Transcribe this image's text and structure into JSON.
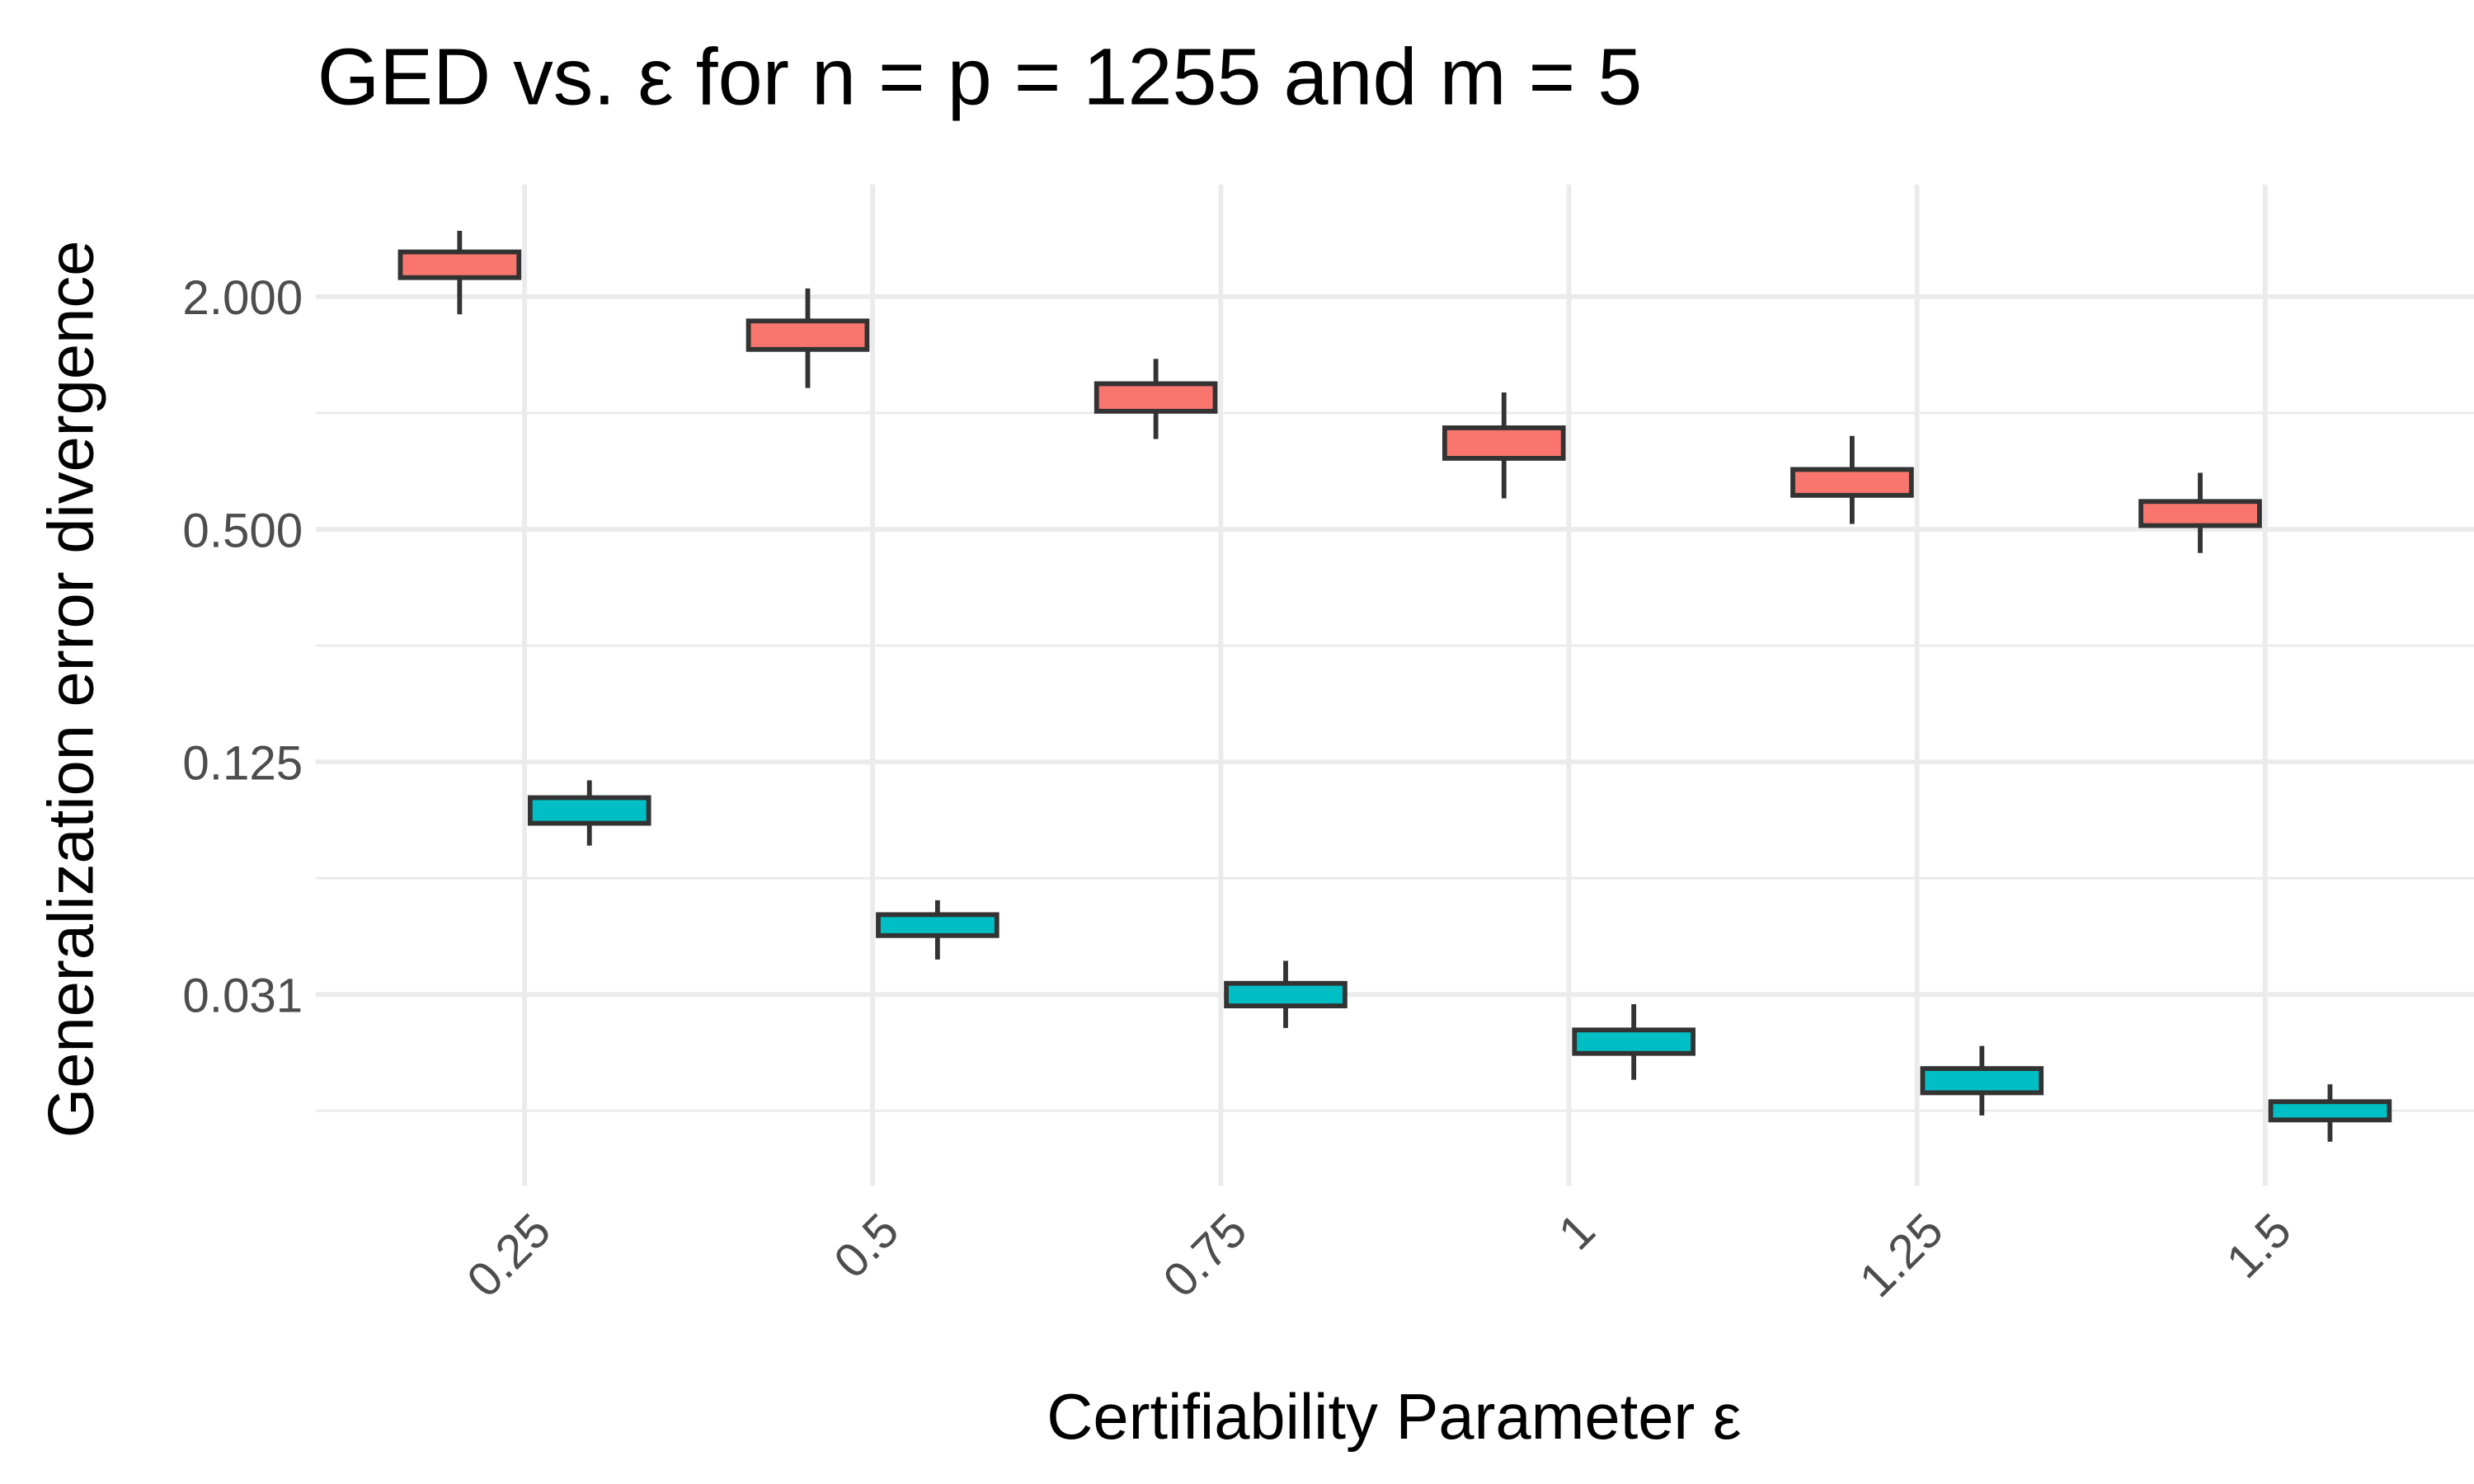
{
  "chart_data": {
    "type": "box",
    "title": "GED vs. ε for n = p = 1255 and m = 5",
    "x_label": "Certifiability Parameter ε",
    "y_label": "Generalization error divergence",
    "x": [
      0.25,
      0.5,
      0.75,
      1,
      1.25,
      1.5
    ],
    "xlim": [
      0.1,
      1.65
    ],
    "xticks": [
      0.25,
      0.5,
      0.75,
      1,
      1.25,
      1.5
    ],
    "ylim": [
      0.01,
      3.9
    ],
    "yscale": "log2",
    "yticks": [
      {
        "value": 2,
        "label": "2.000"
      },
      {
        "value": 0.5,
        "label": "0.500"
      },
      {
        "value": 0.125,
        "label": "0.125"
      },
      {
        "value": 0.03125,
        "label": "0.031"
      }
    ],
    "minor_yticks": [
      1,
      0.25,
      0.0625,
      0.015625
    ],
    "grid": true,
    "series": [
      {
        "color": "#f8766d",
        "high": [
          2.96,
          2.1,
          1.38,
          1.13,
          0.872,
          0.7
        ],
        "q3": [
          2.61,
          1.73,
          1.19,
          0.915,
          0.714,
          0.59
        ],
        "q1": [
          2.24,
          1.46,
          1.01,
          0.763,
          0.612,
          0.511
        ],
        "low": [
          1.8,
          1.16,
          0.856,
          0.601,
          0.516,
          0.434
        ]
      },
      {
        "color": "#00bfc4",
        "high": [
          0.112,
          0.0548,
          0.0382,
          0.0295,
          0.023,
          0.0183
        ],
        "q3": [
          0.101,
          0.0503,
          0.0334,
          0.0253,
          0.0201,
          0.0165
        ],
        "q1": [
          0.0867,
          0.0444,
          0.0292,
          0.022,
          0.0174,
          0.0148
        ],
        "low": [
          0.0759,
          0.0385,
          0.0256,
          0.0188,
          0.0152,
          0.013
        ]
      }
    ]
  }
}
